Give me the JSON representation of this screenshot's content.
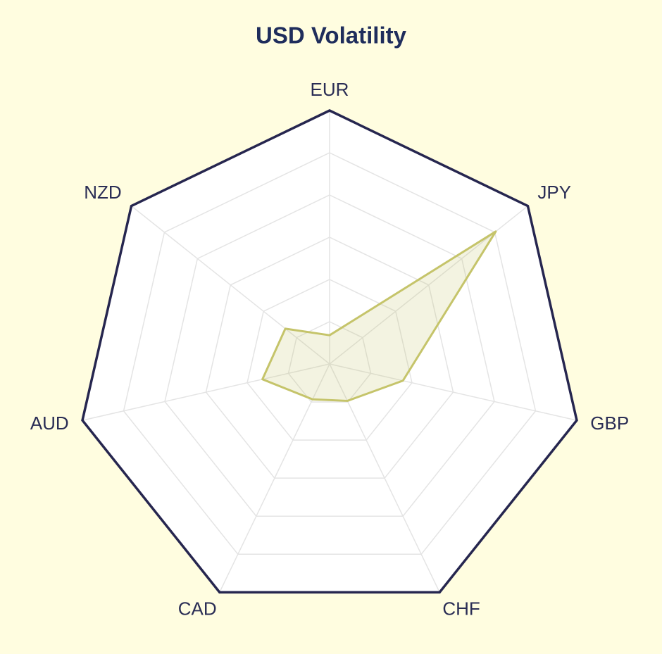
{
  "chart_data": {
    "type": "radar",
    "title": "USD Volatility",
    "categories": [
      "EUR",
      "JPY",
      "GBP",
      "CHF",
      "CAD",
      "AUD",
      "NZD"
    ],
    "series": [
      {
        "name": "USD",
        "color": "#c5c46a",
        "values": [
          0.68,
          5.03,
          1.78,
          0.97,
          0.93,
          1.63,
          1.34
        ]
      }
    ],
    "ylim": [
      0,
      6
    ],
    "yticks": [
      0,
      1,
      2,
      3,
      4,
      5,
      6
    ],
    "grid": true
  }
}
